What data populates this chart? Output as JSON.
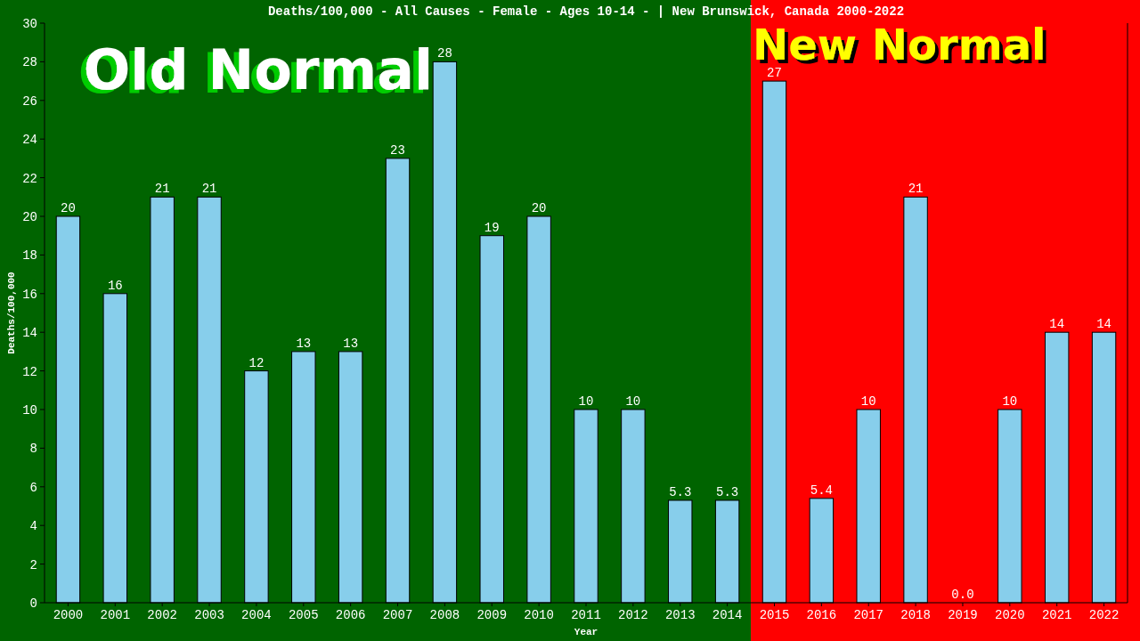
{
  "chart_data": {
    "type": "bar",
    "title": "Deaths/100,000 - All Causes - Female - Ages 10-14 -  | New Brunswick, Canada 2000-2022",
    "xlabel": "Year",
    "ylabel": "Deaths/100,000",
    "categories": [
      "2000",
      "2001",
      "2002",
      "2003",
      "2004",
      "2005",
      "2006",
      "2007",
      "2008",
      "2009",
      "2010",
      "2011",
      "2012",
      "2013",
      "2014",
      "2015",
      "2016",
      "2017",
      "2018",
      "2019",
      "2020",
      "2021",
      "2022"
    ],
    "values": [
      20,
      16,
      21,
      21,
      12,
      13,
      13,
      23,
      28,
      19,
      20,
      10,
      10,
      5.3,
      5.3,
      27,
      5.4,
      10,
      21,
      0,
      10,
      14,
      14
    ],
    "value_labels": [
      "20",
      "16",
      "21",
      "21",
      "12",
      "13",
      "13",
      "23",
      "28",
      "19",
      "20",
      "10",
      "10",
      "5.3",
      "5.3",
      "27",
      "5.4",
      "10",
      "21",
      "0.0",
      "10",
      "14",
      "14"
    ],
    "color": "#87ceeb",
    "ylim": [
      0,
      30
    ],
    "yticks": [
      0,
      2,
      4,
      6,
      8,
      10,
      12,
      14,
      16,
      18,
      20,
      22,
      24,
      26,
      28,
      30
    ],
    "grid": false,
    "bands": [
      {
        "axis": "x",
        "from": "2000",
        "to": "2014",
        "label": "Old Normal",
        "color": "#006400"
      },
      {
        "axis": "x",
        "from": "2015",
        "to": "2022",
        "label": "New Normal",
        "color": "#ff0000"
      }
    ]
  }
}
